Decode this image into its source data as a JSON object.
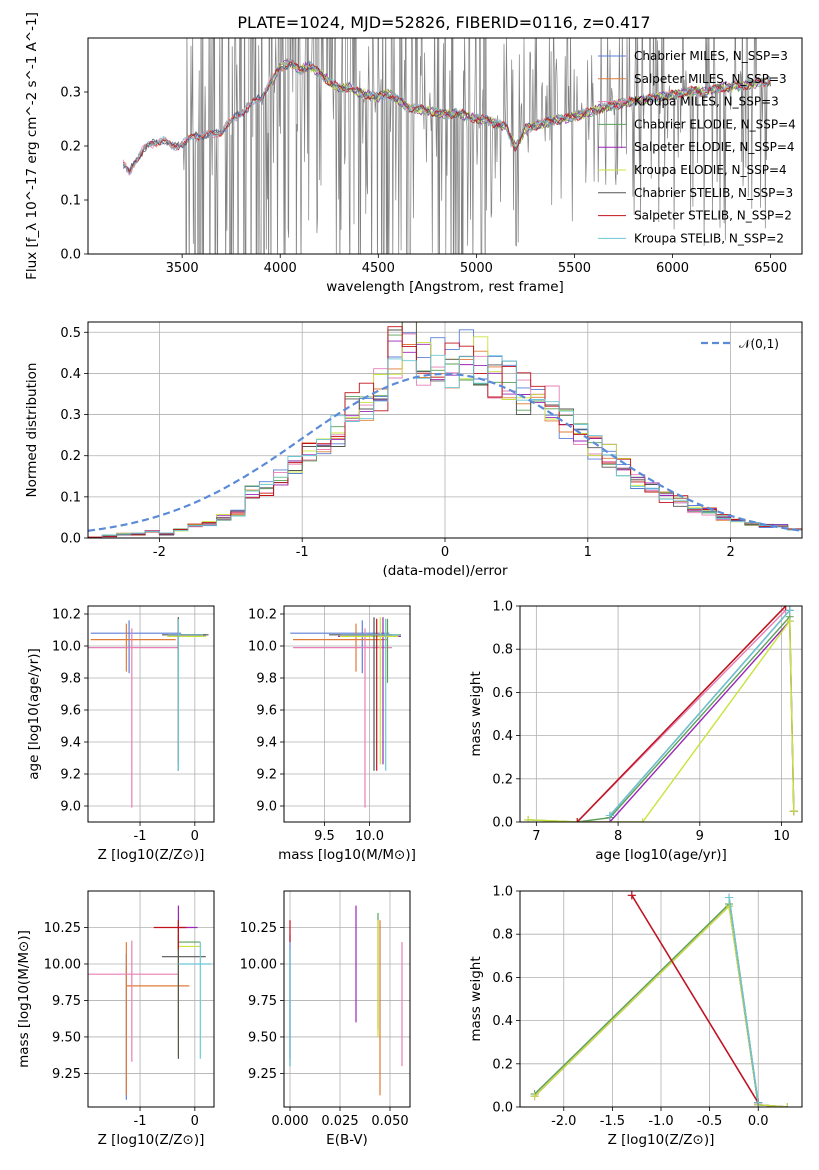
{
  "figure": {
    "title": "PLATE=1024, MJD=52826, FIBERID=0116, z=0.417"
  },
  "colors": {
    "cm": "#5b7fd8",
    "sm": "#e07b39",
    "km": "#e87fb6",
    "ce": "#5aa05a",
    "se": "#9b27b8",
    "ke": "#c8e33b",
    "cs": "#555555",
    "ss": "#c0121b",
    "ks": "#6bc6d6",
    "data": "#808080",
    "normal": "#5b8bd8",
    "grid": "#b0b0b0"
  },
  "chart_data": [
    {
      "id": "spectrum",
      "type": "line",
      "title": "PLATE=1024, MJD=52826, FIBERID=0116, z=0.417",
      "xlabel": "wavelength [Angstrom, rest frame]",
      "ylabel": "Flux [f_λ 10^-17 erg cm^-2 s^-1 A^-1]",
      "xlim": [
        3020,
        6660
      ],
      "ylim": [
        0,
        0.4
      ],
      "xticks": [
        3500,
        4000,
        4500,
        5000,
        5500,
        6000,
        6500
      ],
      "yticks": [
        0.0,
        0.1,
        0.2,
        0.3
      ],
      "grid": false,
      "legend_position": "right",
      "series": [
        {
          "name": "Chabrier MILES, N_SSP=3",
          "color": "cm"
        },
        {
          "name": "Salpeter MILES, N_SSP=3",
          "color": "sm"
        },
        {
          "name": "Kroupa MILES, N_SSP=3",
          "color": "km"
        },
        {
          "name": "Chabrier ELODIE, N_SSP=4",
          "color": "ce"
        },
        {
          "name": "Salpeter ELODIE, N_SSP=4",
          "color": "se"
        },
        {
          "name": "Kroupa ELODIE, N_SSP=4",
          "color": "ke"
        },
        {
          "name": "Chabrier STELIB, N_SSP=3",
          "color": "cs"
        },
        {
          "name": "Salpeter STELIB, N_SSP=2",
          "color": "ss"
        },
        {
          "name": "Kroupa STELIB, N_SSP=2",
          "color": "ks"
        }
      ],
      "continuum": {
        "x": [
          3200,
          3230,
          3260,
          3300,
          3350,
          3400,
          3450,
          3500,
          3550,
          3600,
          3650,
          3700,
          3750,
          3800,
          3850,
          3900,
          3950,
          4000,
          4050,
          4100,
          4150,
          4200,
          4250,
          4300,
          4350,
          4400,
          4450,
          4500,
          4550,
          4600,
          4650,
          4700,
          4750,
          4800,
          4850,
          4900,
          4950,
          5000,
          5050,
          5100,
          5150,
          5200,
          5250,
          5300,
          5350,
          5400,
          5450,
          5500,
          5550,
          5600,
          5650,
          5700,
          5750,
          5800,
          5850,
          5900,
          5950,
          6000,
          6050,
          6100,
          6150,
          6200,
          6250,
          6300,
          6350,
          6400,
          6450,
          6500
        ],
        "y": [
          0.165,
          0.148,
          0.172,
          0.192,
          0.205,
          0.212,
          0.198,
          0.205,
          0.215,
          0.222,
          0.218,
          0.228,
          0.245,
          0.262,
          0.275,
          0.29,
          0.315,
          0.345,
          0.355,
          0.34,
          0.35,
          0.335,
          0.32,
          0.305,
          0.31,
          0.298,
          0.295,
          0.29,
          0.298,
          0.285,
          0.272,
          0.268,
          0.265,
          0.262,
          0.258,
          0.262,
          0.255,
          0.25,
          0.248,
          0.242,
          0.235,
          0.198,
          0.232,
          0.238,
          0.242,
          0.248,
          0.25,
          0.255,
          0.26,
          0.265,
          0.272,
          0.275,
          0.28,
          0.282,
          0.285,
          0.288,
          0.292,
          0.295,
          0.298,
          0.302,
          0.3,
          0.305,
          0.308,
          0.31,
          0.312,
          0.315,
          0.318,
          0.32
        ]
      }
    },
    {
      "id": "residuals",
      "type": "line",
      "xlabel": "(data-model)/error",
      "ylabel": "Normed distribution",
      "xlim": [
        -2.5,
        2.5
      ],
      "ylim": [
        0,
        0.525
      ],
      "xticks": [
        -2,
        -1,
        0,
        1,
        2
      ],
      "yticks": [
        0.0,
        0.1,
        0.2,
        0.3,
        0.4,
        0.5
      ],
      "grid": true,
      "legend": "𝒩(0,1)",
      "legend_position": "top-right",
      "hist_edges_start": -2.5,
      "hist_bin_width": 0.1,
      "hist_values": [
        0,
        0.005,
        0.01,
        0.01,
        0.015,
        0.01,
        0.02,
        0.03,
        0.035,
        0.05,
        0.06,
        0.11,
        0.12,
        0.15,
        0.18,
        0.21,
        0.24,
        0.26,
        0.31,
        0.33,
        0.36,
        0.45,
        0.47,
        0.42,
        0.44,
        0.42,
        0.45,
        0.43,
        0.39,
        0.38,
        0.35,
        0.34,
        0.33,
        0.28,
        0.25,
        0.22,
        0.2,
        0.17,
        0.14,
        0.12,
        0.1,
        0.09,
        0.07,
        0.065,
        0.05,
        0.04,
        0.035,
        0.03,
        0.03,
        0.02
      ]
    },
    {
      "id": "age-vs-Z",
      "type": "scatter",
      "xlabel": "Z [log10(Z/Z⊙)]",
      "ylabel": "age [log10(age/yr)]",
      "xlim": [
        -1.95,
        0.35
      ],
      "ylim": [
        8.9,
        10.25
      ],
      "xticks": [
        -1,
        0
      ],
      "yticks": [
        9.0,
        9.2,
        9.4,
        9.6,
        9.8,
        10.0,
        10.2
      ],
      "grid": true,
      "points": [
        {
          "x": -1.2,
          "y": 10.08,
          "xerr": [
            0.7,
            0.95
          ],
          "yerr": [
            0.25,
            0.08
          ],
          "color": "cm"
        },
        {
          "x": -1.25,
          "y": 10.04,
          "xerr": [
            0.65,
            0.9
          ],
          "yerr": [
            0.2,
            0.1
          ],
          "color": "sm"
        },
        {
          "x": -1.15,
          "y": 9.99,
          "xerr": [
            0.8,
            0.85
          ],
          "yerr": [
            1.0,
            0.12
          ],
          "color": "km"
        },
        {
          "x": -0.3,
          "y": 10.07,
          "xerr": [
            0.2,
            0.5
          ],
          "yerr": [
            0.3,
            0.1
          ],
          "color": "ce"
        },
        {
          "x": -0.3,
          "y": 10.06,
          "xerr": [
            0.2,
            0.5
          ],
          "yerr": [
            0.8,
            0.12
          ],
          "color": "se"
        },
        {
          "x": -0.3,
          "y": 10.06,
          "xerr": [
            0.2,
            0.5
          ],
          "yerr": [
            0.8,
            0.12
          ],
          "color": "ke"
        },
        {
          "x": -0.3,
          "y": 10.07,
          "xerr": [
            0.3,
            0.55
          ],
          "yerr": [
            0.85,
            0.11
          ],
          "color": "cs"
        },
        {
          "x": -0.3,
          "y": 10.07,
          "xerr": [
            0.2,
            0.4
          ],
          "yerr": [
            0.1,
            0.1
          ],
          "color": "ss"
        },
        {
          "x": -0.3,
          "y": 10.07,
          "xerr": [
            0.2,
            0.45
          ],
          "yerr": [
            0.85,
            0.1
          ],
          "color": "ks"
        }
      ]
    },
    {
      "id": "age-vs-mass",
      "type": "scatter",
      "xlabel": "mass [log10(M/M⊙)]",
      "ylabel": "",
      "xlim": [
        9.05,
        10.45
      ],
      "ylim": [
        8.9,
        10.25
      ],
      "xticks": [
        9.5,
        10.0
      ],
      "yticks": [
        9.0,
        9.2,
        9.4,
        9.6,
        9.8,
        10.0,
        10.2
      ],
      "grid": true,
      "points": [
        {
          "x": 9.92,
          "y": 10.08,
          "xerr": [
            0.8,
            0.3
          ],
          "yerr": [
            0.25,
            0.08
          ],
          "color": "cm"
        },
        {
          "x": 9.85,
          "y": 10.04,
          "xerr": [
            0.7,
            0.35
          ],
          "yerr": [
            0.2,
            0.1
          ],
          "color": "sm"
        },
        {
          "x": 9.95,
          "y": 9.99,
          "xerr": [
            0.8,
            0.3
          ],
          "yerr": [
            1.0,
            0.12
          ],
          "color": "km"
        },
        {
          "x": 10.2,
          "y": 10.07,
          "xerr": [
            0.5,
            0.15
          ],
          "yerr": [
            0.3,
            0.1
          ],
          "color": "ce"
        },
        {
          "x": 10.15,
          "y": 10.06,
          "xerr": [
            0.5,
            0.2
          ],
          "yerr": [
            0.8,
            0.12
          ],
          "color": "se"
        },
        {
          "x": 10.12,
          "y": 10.06,
          "xerr": [
            0.45,
            0.2
          ],
          "yerr": [
            0.8,
            0.12
          ],
          "color": "ke"
        },
        {
          "x": 10.05,
          "y": 10.07,
          "xerr": [
            0.5,
            0.2
          ],
          "yerr": [
            0.85,
            0.11
          ],
          "color": "cs"
        },
        {
          "x": 10.08,
          "y": 10.07,
          "xerr": [
            0.4,
            0.15
          ],
          "yerr": [
            0.85,
            0.1
          ],
          "color": "ss"
        },
        {
          "x": 10.18,
          "y": 10.07,
          "xerr": [
            0.5,
            0.15
          ],
          "yerr": [
            0.85,
            0.1
          ],
          "color": "ks"
        }
      ]
    },
    {
      "id": "weight-vs-age",
      "type": "line",
      "xlabel": "age [log10(age/yr)]",
      "ylabel": "mass weight",
      "xlim": [
        6.8,
        10.25
      ],
      "ylim": [
        0,
        1.0
      ],
      "xticks": [
        7,
        8,
        9,
        10
      ],
      "yticks": [
        0.0,
        0.2,
        0.4,
        0.6,
        0.8,
        1.0
      ],
      "grid": true,
      "series": [
        {
          "color": "cm",
          "x": [
            7.5,
            10.05
          ],
          "y": [
            0.0,
            1.0
          ]
        },
        {
          "color": "sm",
          "x": [
            7.5,
            10.05
          ],
          "y": [
            0.0,
            1.0
          ]
        },
        {
          "color": "km",
          "x": [
            7.5,
            10.05
          ],
          "y": [
            0.0,
            0.98
          ]
        },
        {
          "color": "ce",
          "x": [
            6.9,
            7.5,
            7.9,
            10.1,
            10.15
          ],
          "y": [
            0.01,
            0.0,
            0.02,
            0.95,
            0.05
          ]
        },
        {
          "color": "se",
          "x": [
            7.5,
            7.9,
            10.1,
            10.15
          ],
          "y": [
            0.0,
            0.0,
            0.93,
            0.05
          ]
        },
        {
          "color": "ke",
          "x": [
            6.9,
            7.5,
            8.3,
            10.1,
            10.15
          ],
          "y": [
            0.01,
            0.0,
            0.0,
            0.93,
            0.05
          ]
        },
        {
          "color": "cs",
          "x": [
            7.9,
            10.1
          ],
          "y": [
            0.03,
            0.98
          ]
        },
        {
          "color": "ss",
          "x": [
            7.5,
            10.05
          ],
          "y": [
            0.0,
            1.0
          ]
        },
        {
          "color": "ks",
          "x": [
            7.9,
            10.1
          ],
          "y": [
            0.03,
            0.98
          ]
        }
      ]
    },
    {
      "id": "mass-vs-Z",
      "type": "scatter",
      "xlabel": "Z [log10(Z/Z⊙)]",
      "ylabel": "mass [log10(M/M⊙)]",
      "xlim": [
        -1.95,
        0.35
      ],
      "ylim": [
        9.02,
        10.5
      ],
      "xticks": [
        -1,
        0
      ],
      "yticks": [
        9.25,
        9.5,
        9.75,
        10.0,
        10.25
      ],
      "grid": true,
      "points": [
        {
          "x": -1.25,
          "y": 9.85,
          "xerr": [
            0.0,
            0.0
          ],
          "yerr": [
            0.78,
            0.22
          ],
          "color": "cm"
        },
        {
          "x": -1.25,
          "y": 9.85,
          "xerr": [
            0.0,
            1.15
          ],
          "yerr": [
            0.75,
            0.3
          ],
          "color": "sm"
        },
        {
          "x": -1.15,
          "y": 9.93,
          "xerr": [
            0.8,
            0.85
          ],
          "yerr": [
            0.6,
            0.23
          ],
          "color": "km"
        },
        {
          "x": -0.3,
          "y": 10.15,
          "xerr": [
            0.0,
            0.4
          ],
          "yerr": [
            0.6,
            0.15
          ],
          "color": "ce"
        },
        {
          "x": -0.3,
          "y": 10.25,
          "xerr": [
            0.0,
            0.35
          ],
          "yerr": [
            0.15,
            0.15
          ],
          "color": "se"
        },
        {
          "x": -0.3,
          "y": 10.12,
          "xerr": [
            0.0,
            0.4
          ],
          "yerr": [
            0.75,
            0.1
          ],
          "color": "ke"
        },
        {
          "x": -0.3,
          "y": 10.05,
          "xerr": [
            0.3,
            0.5
          ],
          "yerr": [
            0.7,
            0.15
          ],
          "color": "cs"
        },
        {
          "x": -0.3,
          "y": 10.25,
          "xerr": [
            0.45,
            0.15
          ],
          "yerr": [
            0.15,
            0.05
          ],
          "color": "ss"
        },
        {
          "x": 0.1,
          "y": 10.0,
          "xerr": [
            0.4,
            0.2
          ],
          "yerr": [
            0.65,
            0.15
          ],
          "color": "ks"
        }
      ]
    },
    {
      "id": "mass-vs-EBV",
      "type": "scatter",
      "xlabel": "E(B-V)",
      "ylabel": "",
      "xlim": [
        -0.003,
        0.06
      ],
      "ylim": [
        9.02,
        10.5
      ],
      "xticks": [
        0.0,
        0.025,
        0.05
      ],
      "xticklabels": [
        "0.000",
        "0.025",
        "0.050"
      ],
      "yticks": [
        9.25,
        9.5,
        9.75,
        10.0,
        10.25
      ],
      "grid": true,
      "points": [
        {
          "x": 0.0,
          "y": 9.85,
          "yerr": [
            0.5,
            0.35
          ],
          "color": "cm"
        },
        {
          "x": 0.045,
          "y": 9.5,
          "yerr": [
            0.4,
            0.8
          ],
          "color": "sm"
        },
        {
          "x": 0.056,
          "y": 9.9,
          "yerr": [
            0.6,
            0.25
          ],
          "color": "km"
        },
        {
          "x": 0.044,
          "y": 10.0,
          "yerr": [
            0.45,
            0.35
          ],
          "color": "ce"
        },
        {
          "x": 0.033,
          "y": 10.0,
          "yerr": [
            0.4,
            0.4
          ],
          "color": "se"
        },
        {
          "x": 0.044,
          "y": 9.95,
          "yerr": [
            0.45,
            0.35
          ],
          "color": "ke"
        },
        {
          "x": 0.0,
          "y": 9.8,
          "yerr": [
            0.5,
            0.3
          ],
          "color": "cs"
        },
        {
          "x": 0.0,
          "y": 10.15,
          "yerr": [
            0.0,
            0.15
          ],
          "color": "ss"
        },
        {
          "x": 0.0,
          "y": 9.7,
          "yerr": [
            0.4,
            0.4
          ],
          "color": "ks"
        }
      ]
    },
    {
      "id": "weight-vs-Z",
      "type": "line",
      "xlabel": "Z [log10(Z/Z⊙)]",
      "ylabel": "mass weight",
      "xlim": [
        -2.45,
        0.45
      ],
      "ylim": [
        0,
        1.0
      ],
      "xticks": [
        -2.0,
        -1.5,
        -1.0,
        -0.5,
        0.0
      ],
      "yticks": [
        0.0,
        0.2,
        0.4,
        0.6,
        0.8,
        1.0
      ],
      "grid": true,
      "series": [
        {
          "color": "cm",
          "x": [
            -1.3,
            0.0
          ],
          "y": [
            0.98,
            0.02
          ]
        },
        {
          "color": "sm",
          "x": [
            -1.3,
            0.0
          ],
          "y": [
            0.98,
            0.02
          ]
        },
        {
          "color": "km",
          "x": [
            -1.3,
            0.0
          ],
          "y": [
            0.98,
            0.02
          ]
        },
        {
          "color": "ce",
          "x": [
            -2.3,
            -0.3,
            0.0,
            0.3
          ],
          "y": [
            0.06,
            0.94,
            0.01,
            0.0
          ]
        },
        {
          "color": "se",
          "x": [
            -2.3,
            -0.3,
            0.0,
            0.3
          ],
          "y": [
            0.05,
            0.93,
            0.01,
            0.0
          ]
        },
        {
          "color": "ke",
          "x": [
            -2.3,
            -0.3,
            0.0,
            0.3
          ],
          "y": [
            0.05,
            0.93,
            0.01,
            0.0
          ]
        },
        {
          "color": "cs",
          "x": [
            -0.3,
            0.0
          ],
          "y": [
            0.97,
            0.02
          ]
        },
        {
          "color": "ss",
          "x": [
            -1.3,
            0.0
          ],
          "y": [
            0.98,
            0.02
          ]
        },
        {
          "color": "ks",
          "x": [
            -0.3,
            0.0
          ],
          "y": [
            0.97,
            0.02
          ]
        }
      ]
    }
  ]
}
